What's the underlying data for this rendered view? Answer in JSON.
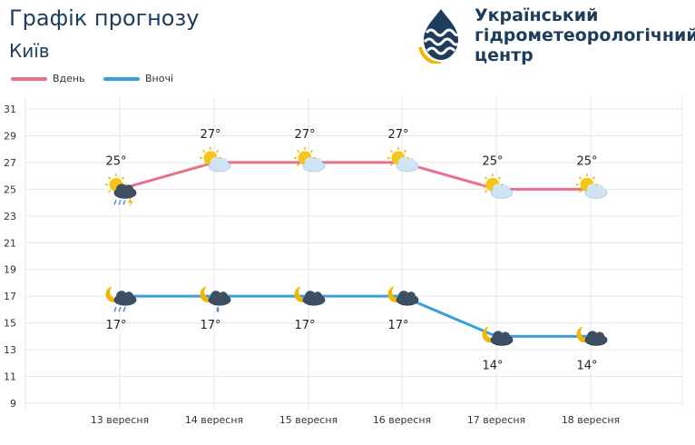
{
  "header": {
    "title": "Графік прогнозу",
    "city": "Київ",
    "org_line1": "Український",
    "org_line2": "гідрометеорологічний",
    "org_line3": "центр"
  },
  "colors": {
    "day": "#e8708a",
    "night": "#3a9fd8",
    "grid": "#e6e6e6",
    "brand": "#1e3d5c"
  },
  "chart_data": {
    "type": "line",
    "categories": [
      "13 вересня",
      "14 вересня",
      "15 вересня",
      "16 вересня",
      "17 вересня",
      "18 вересня"
    ],
    "series": [
      {
        "name": "Вдень",
        "values": [
          25,
          27,
          27,
          27,
          25,
          25
        ],
        "labels": [
          "25°",
          "27°",
          "27°",
          "27°",
          "25°",
          "25°"
        ],
        "icons": [
          "sun-cloud-rain-storm-icon",
          "sun-cloud-icon",
          "sun-cloud-icon",
          "sun-cloud-icon",
          "sun-cloud-icon",
          "sun-cloud-icon"
        ]
      },
      {
        "name": "Вночі",
        "values": [
          17,
          17,
          17,
          17,
          14,
          14
        ],
        "labels": [
          "17°",
          "17°",
          "17°",
          "17°",
          "14°",
          "14°"
        ],
        "icons": [
          "moon-cloud-rain-icon",
          "moon-cloud-drop-icon",
          "moon-cloud-icon",
          "moon-cloud-icon",
          "moon-cloud-icon",
          "moon-cloud-icon"
        ]
      }
    ],
    "ylim": [
      9,
      31
    ],
    "yticks": [
      9,
      11,
      13,
      15,
      17,
      19,
      21,
      23,
      25,
      27,
      29,
      31
    ],
    "grid": true,
    "legend_position": "top-left"
  }
}
